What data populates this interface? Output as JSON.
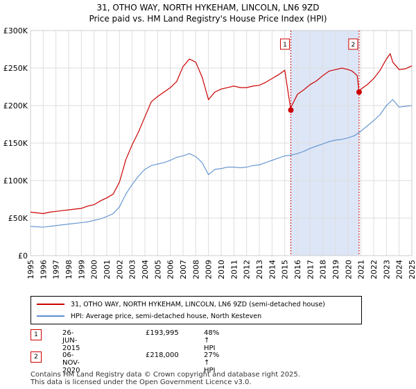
{
  "title_line1": "31, OTHO WAY, NORTH HYKEHAM, LINCOLN, LN6 9ZD",
  "title_line2": "Price paid vs. HM Land Registry's House Price Index (HPI)",
  "colors": {
    "property": "#cc0000",
    "hpi": "#5b8fd0",
    "shade": "#dde6f7",
    "grid": "#dddddd",
    "vline": "#cc0000"
  },
  "chart_data": {
    "type": "line",
    "title": "31, OTHO WAY, NORTH HYKEHAM, LINCOLN, LN6 9ZD",
    "subtitle": "Price paid vs. HM Land Registry's House Price Index (HPI)",
    "xlabel": "",
    "ylabel": "",
    "xlim": [
      1995,
      2025
    ],
    "ylim": [
      0,
      300000
    ],
    "yticks": [
      0,
      50000,
      100000,
      150000,
      200000,
      250000,
      300000
    ],
    "ytick_labels": [
      "£0",
      "£50K",
      "£100K",
      "£150K",
      "£200K",
      "£250K",
      "£300K"
    ],
    "xticks": [
      1995,
      1996,
      1997,
      1998,
      1999,
      2000,
      2001,
      2002,
      2003,
      2004,
      2005,
      2006,
      2007,
      2008,
      2009,
      2010,
      2011,
      2012,
      2013,
      2014,
      2015,
      2016,
      2017,
      2018,
      2019,
      2020,
      2021,
      2022,
      2023,
      2024,
      2025
    ],
    "grid": true,
    "series": [
      {
        "name": "31, OTHO WAY, NORTH HYKEHAM, LINCOLN, LN6 9ZD (semi-detached house)",
        "color": "#cc0000",
        "x": [
          1995,
          1995.5,
          1996,
          1996.5,
          1997,
          1997.5,
          1998,
          1998.5,
          1999,
          1999.5,
          2000,
          2000.5,
          2001,
          2001.5,
          2002,
          2002.5,
          2003,
          2003.5,
          2004,
          2004.5,
          2005,
          2005.5,
          2006,
          2006.5,
          2007,
          2007.5,
          2008,
          2008.5,
          2009,
          2009.5,
          2010,
          2010.5,
          2011,
          2011.5,
          2012,
          2012.5,
          2013,
          2013.5,
          2014,
          2014.5,
          2015,
          2015.48,
          2015.5,
          2016,
          2016.5,
          2017,
          2017.5,
          2018,
          2018.5,
          2019,
          2019.5,
          2020,
          2020.3,
          2020.5,
          2020.7,
          2020.85,
          2021,
          2021.5,
          2022,
          2022.5,
          2023,
          2023.3,
          2023.5,
          2024,
          2024.5,
          2025
        ],
        "values": [
          58000,
          57000,
          56000,
          58000,
          59000,
          60000,
          61000,
          62000,
          63000,
          66000,
          68000,
          73000,
          77000,
          82000,
          98000,
          128000,
          148000,
          165000,
          185000,
          205000,
          212000,
          218000,
          224000,
          232000,
          252000,
          262000,
          258000,
          238000,
          208000,
          218000,
          222000,
          224000,
          226000,
          224000,
          224000,
          226000,
          227000,
          231000,
          236000,
          241000,
          247000,
          193995,
          198000,
          215000,
          221000,
          228000,
          233000,
          240000,
          246000,
          248000,
          250000,
          248000,
          246000,
          243000,
          240000,
          218000,
          222000,
          228000,
          236000,
          247000,
          262000,
          269000,
          258000,
          248000,
          249000,
          253000
        ]
      },
      {
        "name": "HPI: Average price, semi-detached house, North Kesteven",
        "color": "#5b8fd0",
        "x": [
          1995,
          1995.5,
          1996,
          1996.5,
          1997,
          1997.5,
          1998,
          1998.5,
          1999,
          1999.5,
          2000,
          2000.5,
          2001,
          2001.5,
          2002,
          2002.5,
          2003,
          2003.5,
          2004,
          2004.5,
          2005,
          2005.5,
          2006,
          2006.5,
          2007,
          2007.5,
          2008,
          2008.5,
          2009,
          2009.5,
          2010,
          2010.5,
          2011,
          2011.5,
          2012,
          2012.5,
          2013,
          2013.5,
          2014,
          2014.5,
          2015,
          2015.5,
          2016,
          2016.5,
          2017,
          2017.5,
          2018,
          2018.5,
          2019,
          2019.5,
          2020,
          2020.5,
          2021,
          2021.5,
          2022,
          2022.5,
          2023,
          2023.5,
          2024,
          2024.5,
          2025
        ],
        "values": [
          39000,
          38500,
          38000,
          39000,
          40000,
          41000,
          42000,
          43000,
          44000,
          45000,
          47000,
          49000,
          52000,
          56000,
          65000,
          82000,
          95000,
          106000,
          115000,
          120000,
          122000,
          124000,
          127000,
          131000,
          133000,
          136000,
          132000,
          124000,
          108000,
          115000,
          116000,
          118000,
          118000,
          117000,
          118000,
          120000,
          121000,
          124000,
          127000,
          130000,
          133000,
          134000,
          136000,
          139000,
          143000,
          146000,
          149000,
          152000,
          154000,
          155000,
          157000,
          160000,
          166000,
          173000,
          180000,
          188000,
          200000,
          208000,
          198000,
          199000,
          200000
        ]
      }
    ],
    "annotations": [
      {
        "label": "1",
        "x": 2015.48,
        "value": 193995
      },
      {
        "label": "2",
        "x": 2020.85,
        "value": 218000
      }
    ],
    "shaded_range": [
      2015.48,
      2020.85
    ]
  },
  "legend": {
    "property_label": "31, OTHO WAY, NORTH HYKEHAM, LINCOLN, LN6 9ZD (semi-detached house)",
    "hpi_label": "HPI: Average price, semi-detached house, North Kesteven"
  },
  "transactions": [
    {
      "num": "1",
      "date": "26-JUN-2015",
      "price": "£193,995",
      "hpi": "48% ↑ HPI"
    },
    {
      "num": "2",
      "date": "06-NOV-2020",
      "price": "£218,000",
      "hpi": "27% ↑ HPI"
    }
  ],
  "footer_line1": "Contains HM Land Registry data © Crown copyright and database right 2025.",
  "footer_line2": "This data is licensed under the Open Government Licence v3.0."
}
